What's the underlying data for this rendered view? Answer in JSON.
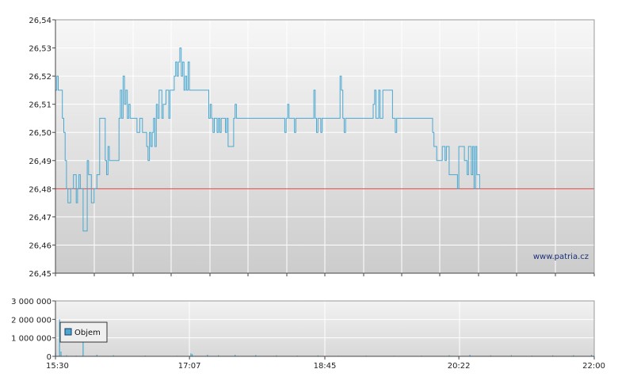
{
  "watermark": "www.patria.cz",
  "chart_data": [
    {
      "type": "line",
      "name": "price",
      "ylim": [
        26.45,
        26.54
      ],
      "yticks": [
        "26,54",
        "26,53",
        "26,52",
        "26,51",
        "26,50",
        "26,49",
        "26,48",
        "26,47",
        "26,46",
        "26,45"
      ],
      "reference_line": 26.48,
      "reference_color": "#e04040",
      "line_color": "#4aa8d0",
      "grid": true,
      "points": [
        [
          "15:30",
          26.515
        ],
        [
          "15:31",
          26.52
        ],
        [
          "15:32",
          26.515
        ],
        [
          "15:34",
          26.515
        ],
        [
          "15:35",
          26.505
        ],
        [
          "15:36",
          26.5
        ],
        [
          "15:37",
          26.49
        ],
        [
          "15:38",
          26.48
        ],
        [
          "15:39",
          26.475
        ],
        [
          "15:40",
          26.475
        ],
        [
          "15:41",
          26.48
        ],
        [
          "15:43",
          26.485
        ],
        [
          "15:44",
          26.485
        ],
        [
          "15:45",
          26.475
        ],
        [
          "15:46",
          26.48
        ],
        [
          "15:47",
          26.485
        ],
        [
          "15:48",
          26.48
        ],
        [
          "15:49",
          26.48
        ],
        [
          "15:50",
          26.465
        ],
        [
          "15:52",
          26.465
        ],
        [
          "15:53",
          26.49
        ],
        [
          "15:54",
          26.485
        ],
        [
          "15:55",
          26.485
        ],
        [
          "15:56",
          26.475
        ],
        [
          "15:58",
          26.48
        ],
        [
          "16:00",
          26.485
        ],
        [
          "16:02",
          26.505
        ],
        [
          "16:03",
          26.505
        ],
        [
          "16:06",
          26.49
        ],
        [
          "16:07",
          26.485
        ],
        [
          "16:08",
          26.495
        ],
        [
          "16:09",
          26.49
        ],
        [
          "16:10",
          26.49
        ],
        [
          "16:16",
          26.505
        ],
        [
          "16:17",
          26.515
        ],
        [
          "16:18",
          26.505
        ],
        [
          "16:19",
          26.52
        ],
        [
          "16:20",
          26.51
        ],
        [
          "16:21",
          26.515
        ],
        [
          "16:22",
          26.505
        ],
        [
          "16:23",
          26.51
        ],
        [
          "16:24",
          26.505
        ],
        [
          "16:29",
          26.5
        ],
        [
          "16:30",
          26.5
        ],
        [
          "16:31",
          26.505
        ],
        [
          "16:32",
          26.505
        ],
        [
          "16:33",
          26.5
        ],
        [
          "16:35",
          26.5
        ],
        [
          "16:36",
          26.495
        ],
        [
          "16:37",
          26.49
        ],
        [
          "16:38",
          26.5
        ],
        [
          "16:39",
          26.495
        ],
        [
          "16:40",
          26.5
        ],
        [
          "16:41",
          26.505
        ],
        [
          "16:42",
          26.495
        ],
        [
          "16:43",
          26.51
        ],
        [
          "16:44",
          26.505
        ],
        [
          "16:45",
          26.515
        ],
        [
          "16:46",
          26.515
        ],
        [
          "16:47",
          26.505
        ],
        [
          "16:48",
          26.51
        ],
        [
          "16:49",
          26.51
        ],
        [
          "16:50",
          26.515
        ],
        [
          "16:51",
          26.515
        ],
        [
          "16:52",
          26.505
        ],
        [
          "16:53",
          26.515
        ],
        [
          "16:55",
          26.515
        ],
        [
          "16:56",
          26.52
        ],
        [
          "16:57",
          26.525
        ],
        [
          "16:58",
          26.52
        ],
        [
          "16:59",
          26.525
        ],
        [
          "17:00",
          26.53
        ],
        [
          "17:01",
          26.52
        ],
        [
          "17:02",
          26.525
        ],
        [
          "17:03",
          26.515
        ],
        [
          "17:04",
          26.52
        ],
        [
          "17:05",
          26.515
        ],
        [
          "17:06",
          26.525
        ],
        [
          "17:07",
          26.515
        ],
        [
          "17:08",
          26.515
        ],
        [
          "17:20",
          26.515
        ],
        [
          "17:21",
          26.505
        ],
        [
          "17:22",
          26.51
        ],
        [
          "17:23",
          26.505
        ],
        [
          "17:24",
          26.5
        ],
        [
          "17:25",
          26.505
        ],
        [
          "17:26",
          26.505
        ],
        [
          "17:27",
          26.5
        ],
        [
          "17:28",
          26.505
        ],
        [
          "17:29",
          26.5
        ],
        [
          "17:30",
          26.505
        ],
        [
          "17:33",
          26.5
        ],
        [
          "17:34",
          26.505
        ],
        [
          "17:35",
          26.495
        ],
        [
          "17:38",
          26.495
        ],
        [
          "17:39",
          26.505
        ],
        [
          "17:40",
          26.51
        ],
        [
          "17:41",
          26.505
        ],
        [
          "18:15",
          26.505
        ],
        [
          "18:16",
          26.5
        ],
        [
          "18:17",
          26.505
        ],
        [
          "18:18",
          26.51
        ],
        [
          "18:19",
          26.505
        ],
        [
          "18:22",
          26.505
        ],
        [
          "18:23",
          26.5
        ],
        [
          "18:24",
          26.505
        ],
        [
          "18:36",
          26.505
        ],
        [
          "18:37",
          26.515
        ],
        [
          "18:38",
          26.505
        ],
        [
          "18:39",
          26.5
        ],
        [
          "18:40",
          26.505
        ],
        [
          "18:41",
          26.505
        ],
        [
          "18:42",
          26.5
        ],
        [
          "18:43",
          26.505
        ],
        [
          "18:55",
          26.505
        ],
        [
          "18:56",
          26.52
        ],
        [
          "18:57",
          26.515
        ],
        [
          "18:58",
          26.505
        ],
        [
          "18:59",
          26.5
        ],
        [
          "19:00",
          26.505
        ],
        [
          "19:19",
          26.505
        ],
        [
          "19:20",
          26.51
        ],
        [
          "19:21",
          26.515
        ],
        [
          "19:22",
          26.505
        ],
        [
          "19:23",
          26.505
        ],
        [
          "19:24",
          26.515
        ],
        [
          "19:25",
          26.505
        ],
        [
          "19:26",
          26.505
        ],
        [
          "19:27",
          26.515
        ],
        [
          "19:33",
          26.515
        ],
        [
          "19:34",
          26.505
        ],
        [
          "19:35",
          26.505
        ],
        [
          "19:36",
          26.5
        ],
        [
          "19:37",
          26.505
        ],
        [
          "20:02",
          26.505
        ],
        [
          "20:03",
          26.5
        ],
        [
          "20:04",
          26.495
        ],
        [
          "20:05",
          26.495
        ],
        [
          "20:06",
          26.49
        ],
        [
          "20:09",
          26.49
        ],
        [
          "20:10",
          26.495
        ],
        [
          "20:11",
          26.495
        ],
        [
          "20:12",
          26.49
        ],
        [
          "20:13",
          26.495
        ],
        [
          "20:14",
          26.495
        ],
        [
          "20:15",
          26.485
        ],
        [
          "20:20",
          26.485
        ],
        [
          "20:21",
          26.48
        ],
        [
          "20:22",
          26.495
        ],
        [
          "20:25",
          26.495
        ],
        [
          "20:26",
          26.49
        ],
        [
          "20:28",
          26.485
        ],
        [
          "20:29",
          26.495
        ],
        [
          "20:30",
          26.495
        ],
        [
          "20:31",
          26.485
        ],
        [
          "20:32",
          26.495
        ],
        [
          "20:33",
          26.48
        ],
        [
          "20:34",
          26.495
        ],
        [
          "20:35",
          26.485
        ],
        [
          "20:36",
          26.485
        ],
        [
          "20:37",
          26.48
        ],
        [
          "20:37.5",
          26.48
        ]
      ]
    },
    {
      "type": "bar",
      "name": "volume",
      "ylim": [
        0,
        3000000
      ],
      "yticks": [
        "3 000 000",
        "2 000 000",
        "1 000 000",
        "0"
      ],
      "xticks": [
        "15:30",
        "17:07",
        "18:45",
        "20:22",
        "22:00"
      ],
      "xlim": [
        "15:30",
        "22:00"
      ],
      "bar_color": "#4aa8d0",
      "grid": true,
      "legend": {
        "label": "Objem",
        "position": "top-left"
      },
      "bars": [
        [
          "15:30",
          180000
        ],
        [
          "15:33",
          2000000
        ],
        [
          "15:34",
          260000
        ],
        [
          "15:38",
          60000
        ],
        [
          "15:45",
          40000
        ],
        [
          "15:50",
          1050000
        ],
        [
          "16:00",
          90000
        ],
        [
          "16:12",
          60000
        ],
        [
          "16:35",
          40000
        ],
        [
          "16:58",
          30000
        ],
        [
          "17:08",
          160000
        ],
        [
          "17:09",
          120000
        ],
        [
          "17:20",
          90000
        ],
        [
          "17:28",
          60000
        ],
        [
          "17:40",
          80000
        ],
        [
          "17:55",
          70000
        ],
        [
          "18:10",
          50000
        ],
        [
          "18:25",
          40000
        ],
        [
          "18:40",
          50000
        ],
        [
          "18:55",
          30000
        ],
        [
          "19:15",
          40000
        ],
        [
          "19:35",
          30000
        ],
        [
          "19:55",
          40000
        ],
        [
          "20:15",
          60000
        ],
        [
          "20:30",
          80000
        ],
        [
          "20:45",
          50000
        ],
        [
          "21:00",
          60000
        ],
        [
          "21:15",
          40000
        ],
        [
          "21:30",
          50000
        ],
        [
          "21:45",
          60000
        ],
        [
          "21:58",
          80000
        ]
      ]
    }
  ]
}
